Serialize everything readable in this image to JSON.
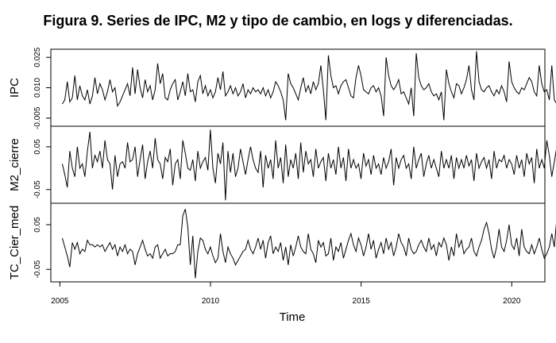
{
  "figure": {
    "title": "Figura 9. Series de IPC, M2 y tipo de cambio, en logs y diferenciadas."
  },
  "chart_data": {
    "type": "line",
    "title": "Figura 9. Series de IPC, M2 y tipo de cambio, en logs y diferenciadas.",
    "xlabel": "Time",
    "x_start": 2005.08,
    "x_frequency": "monthly",
    "x_ticks": [
      "2005",
      "2010",
      "2015",
      "2020"
    ],
    "xlim": [
      2004.7,
      2021.1
    ],
    "grid": false,
    "legend": "none",
    "panels": [
      {
        "name": "IPC",
        "ylim": [
          -0.009,
          0.029
        ],
        "y_ticks": [
          "-0.005",
          "0.010",
          "0.025"
        ],
        "values": [
          0.002,
          0.004,
          0.013,
          0.003,
          0.005,
          0.016,
          0.004,
          0.011,
          0.006,
          0.004,
          0.009,
          0.002,
          0.006,
          0.015,
          0.007,
          0.012,
          0.009,
          0.004,
          0.008,
          0.014,
          0.008,
          0.01,
          0.001,
          0.003,
          0.006,
          0.009,
          0.012,
          0.006,
          0.02,
          0.007,
          0.019,
          0.01,
          0.005,
          0.014,
          0.008,
          0.011,
          0.004,
          0.009,
          0.022,
          0.012,
          0.017,
          0.005,
          0.004,
          0.009,
          0.012,
          0.014,
          0.004,
          0.008,
          0.013,
          0.006,
          0.017,
          0.008,
          0.009,
          0.003,
          0.013,
          0.016,
          0.007,
          0.011,
          0.006,
          0.009,
          0.005,
          0.008,
          0.015,
          0.009,
          0.018,
          0.006,
          0.008,
          0.011,
          0.007,
          0.01,
          0.006,
          0.008,
          0.012,
          0.005,
          0.009,
          0.007,
          0.01,
          0.008,
          0.009,
          0.007,
          0.01,
          0.006,
          0.009,
          0.005,
          0.008,
          0.013,
          0.011,
          0.008,
          0.004,
          -0.006,
          0.017,
          0.012,
          0.01,
          0.007,
          0.004,
          0.01,
          0.015,
          0.008,
          0.011,
          0.007,
          0.013,
          0.009,
          0.012,
          0.021,
          0.009,
          -0.006,
          0.026,
          0.016,
          0.01,
          0.011,
          0.007,
          0.011,
          0.013,
          0.014,
          0.01,
          0.006,
          0.005,
          0.015,
          0.021,
          0.016,
          0.009,
          0.008,
          0.007,
          0.01,
          0.011,
          0.008,
          0.01,
          0.006,
          -0.004,
          0.025,
          0.016,
          0.011,
          0.009,
          0.011,
          0.014,
          0.007,
          0.008,
          0.005,
          0.002,
          0.01,
          -0.004,
          0.027,
          0.015,
          0.011,
          0.009,
          0.01,
          0.012,
          0.008,
          0.006,
          0.007,
          0.004,
          0.008,
          -0.006,
          0.019,
          0.012,
          0.008,
          0.005,
          0.012,
          0.011,
          0.007,
          0.01,
          0.014,
          0.021,
          0.009,
          0.004,
          0.028,
          0.013,
          0.009,
          0.008,
          0.01,
          0.011,
          0.008,
          0.006,
          0.009,
          0.007,
          0.011,
          0.008,
          0.003,
          0.023,
          0.013,
          0.01,
          0.008,
          0.007,
          0.01,
          0.009,
          0.012,
          0.015,
          0.013,
          0.008,
          0.006,
          0.021,
          0.012,
          0.008,
          0.009,
          0.004,
          0.021,
          0.004,
          0.002,
          0.008,
          0.009
        ]
      },
      {
        "name": "M2_cierre",
        "ylim": [
          -0.082,
          0.098
        ],
        "y_ticks": [
          "-0.05",
          "0.05"
        ],
        "values": [
          0.01,
          -0.015,
          -0.045,
          0.04,
          0.0,
          -0.02,
          0.05,
          0.0,
          0.01,
          -0.02,
          0.04,
          0.085,
          0.0,
          0.03,
          0.015,
          0.04,
          0.0,
          0.065,
          0.02,
          0.01,
          -0.05,
          0.03,
          -0.02,
          0.01,
          0.015,
          0.0,
          0.06,
          0.015,
          0.02,
          0.05,
          -0.02,
          0.02,
          0.055,
          -0.025,
          0.015,
          0.04,
          0.0,
          0.07,
          0.02,
          0.01,
          -0.025,
          0.025,
          0.015,
          0.045,
          -0.04,
          0.01,
          0.02,
          -0.025,
          0.065,
          0.035,
          0.0,
          -0.005,
          0.02,
          -0.03,
          0.04,
          0.0,
          0.015,
          0.025,
          -0.005,
          0.09,
          0.0,
          -0.035,
          0.035,
          0.01,
          0.06,
          -0.075,
          0.04,
          -0.01,
          0.035,
          -0.02,
          0.0,
          0.045,
          0.015,
          -0.015,
          0.02,
          0.05,
          0.02,
          0.0,
          -0.01,
          0.04,
          -0.045,
          0.03,
          0.0,
          0.02,
          -0.025,
          0.065,
          0.0,
          0.025,
          -0.035,
          0.055,
          -0.02,
          0.02,
          0.0,
          0.035,
          -0.025,
          0.06,
          -0.01,
          0.04,
          0.01,
          0.02,
          -0.02,
          0.045,
          0.0,
          0.015,
          0.025,
          -0.03,
          0.035,
          0.0,
          0.02,
          -0.015,
          0.05,
          0.0,
          0.025,
          -0.03,
          0.045,
          0.0,
          0.02,
          0.0,
          0.01,
          -0.025,
          0.035,
          0.005,
          0.02,
          -0.015,
          0.03,
          0.0,
          0.01,
          -0.015,
          0.025,
          0.0,
          0.015,
          0.045,
          -0.04,
          0.025,
          0.0,
          0.02,
          0.03,
          0.0,
          0.01,
          -0.025,
          0.05,
          0.0,
          0.02,
          0.035,
          -0.02,
          0.01,
          0.03,
          0.0,
          0.02,
          0.0,
          -0.02,
          0.04,
          0.0,
          0.02,
          0.0,
          0.03,
          -0.025,
          0.025,
          0.0,
          0.02,
          0.0,
          0.03,
          0.005,
          0.02,
          -0.03,
          0.035,
          0.0,
          0.015,
          0.025,
          0.0,
          0.02,
          -0.025,
          0.04,
          0.0,
          0.02,
          0.015,
          0.03,
          0.0,
          0.02,
          0.01,
          -0.015,
          0.03,
          0.0,
          0.02,
          -0.02,
          0.035,
          0.01,
          0.025,
          -0.035,
          0.045,
          0.0,
          0.02,
          0.0,
          0.065,
          0.03,
          -0.02,
          0.015,
          0.05,
          -0.025,
          0.025,
          0.0,
          0.035,
          0.015,
          0.0,
          0.02,
          0.03,
          0.005,
          0.02,
          0.01,
          0.015
        ]
      },
      {
        "name": "TC_Cier_med",
        "ylim": [
          -0.078,
          0.098
        ],
        "y_ticks": [
          "-0.05",
          "0.05"
        ],
        "values": [
          0.02,
          0.0,
          -0.02,
          -0.045,
          0.01,
          -0.005,
          0.01,
          -0.015,
          -0.005,
          -0.01,
          0.015,
          0.005,
          0.005,
          0.0,
          0.005,
          0.0,
          0.005,
          -0.01,
          0.0,
          0.01,
          -0.005,
          0.005,
          -0.02,
          0.0,
          -0.01,
          0.005,
          -0.015,
          -0.005,
          -0.01,
          -0.04,
          -0.015,
          0.0,
          0.015,
          -0.005,
          -0.02,
          -0.015,
          -0.025,
          0.0,
          0.005,
          -0.025,
          -0.015,
          -0.005,
          -0.02,
          -0.015,
          -0.015,
          -0.01,
          0.005,
          0.005,
          0.07,
          0.085,
          0.045,
          -0.04,
          0.025,
          -0.07,
          -0.01,
          0.02,
          0.015,
          -0.005,
          -0.015,
          0.0,
          -0.02,
          -0.035,
          -0.025,
          0.03,
          -0.01,
          -0.035,
          0.0,
          -0.015,
          -0.025,
          -0.04,
          -0.03,
          -0.02,
          -0.01,
          -0.005,
          0.015,
          -0.005,
          -0.015,
          0.0,
          0.02,
          -0.005,
          0.015,
          -0.025,
          0.01,
          0.025,
          -0.015,
          0.0,
          -0.01,
          0.01,
          -0.03,
          0.0,
          -0.04,
          0.005,
          -0.02,
          0.0,
          0.025,
          0.0,
          -0.01,
          -0.015,
          0.03,
          -0.005,
          -0.015,
          -0.035,
          0.015,
          0.0,
          0.01,
          -0.02,
          -0.015,
          0.02,
          -0.03,
          0.0,
          -0.01,
          0.01,
          -0.025,
          -0.005,
          0.015,
          0.03,
          0.005,
          -0.01,
          0.02,
          0.005,
          -0.02,
          0.0,
          0.03,
          -0.005,
          0.015,
          -0.025,
          -0.005,
          0.01,
          -0.015,
          0.02,
          -0.005,
          0.01,
          -0.02,
          0.0,
          0.03,
          0.01,
          0.0,
          -0.02,
          0.02,
          -0.005,
          -0.015,
          -0.01,
          0.005,
          0.015,
          0.0,
          -0.01,
          0.02,
          -0.005,
          0.005,
          -0.02,
          0.01,
          0.0,
          0.02,
          0.005,
          -0.03,
          0.0,
          -0.02,
          0.03,
          0.0,
          0.015,
          -0.015,
          -0.005,
          0.0,
          0.02,
          -0.01,
          -0.02,
          0.0,
          0.015,
          0.04,
          0.055,
          0.03,
          -0.005,
          -0.025,
          0.0,
          0.04,
          0.0,
          -0.01,
          0.015,
          0.05,
          0.005,
          -0.005,
          0.02,
          -0.02,
          0.04,
          0.0,
          -0.01,
          -0.015,
          0.005,
          -0.015,
          0.0,
          0.02,
          -0.005,
          -0.025,
          -0.015,
          0.0,
          0.03,
          0.0,
          0.065,
          0.005,
          -0.035,
          0.02,
          -0.045,
          0.0,
          -0.02,
          0.005
        ]
      }
    ]
  }
}
